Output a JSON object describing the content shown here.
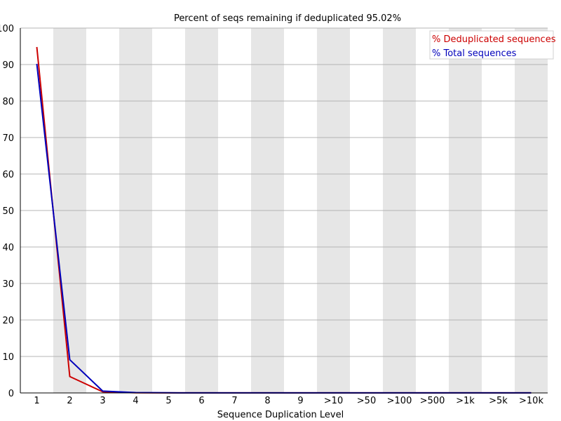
{
  "chart_data": {
    "type": "line",
    "title": "Percent of seqs remaining if deduplicated 95.02%",
    "xlabel": "Sequence Duplication Level",
    "ylabel": "",
    "categories": [
      "1",
      "2",
      "3",
      "4",
      "5",
      "6",
      "7",
      "8",
      "9",
      ">10",
      ">50",
      ">100",
      ">500",
      ">1k",
      ">5k",
      ">10k"
    ],
    "ylim": [
      0,
      100
    ],
    "yticks": [
      0,
      10,
      20,
      30,
      40,
      50,
      60,
      70,
      80,
      90,
      100
    ],
    "grid": true,
    "legend_position": "top-right",
    "series": [
      {
        "name": "% Deduplicated sequences",
        "color": "#cc0000",
        "values": [
          94.8,
          4.5,
          0.3,
          0.05,
          0.02,
          0.01,
          0.01,
          0.01,
          0.01,
          0.01,
          0.01,
          0.01,
          0.01,
          0.01,
          0.01,
          0.01
        ]
      },
      {
        "name": "% Total sequences",
        "color": "#0000bb",
        "values": [
          90.2,
          9.1,
          0.5,
          0.1,
          0.04,
          0.02,
          0.02,
          0.02,
          0.02,
          0.02,
          0.02,
          0.02,
          0.02,
          0.02,
          0.02,
          0.02
        ]
      }
    ],
    "colors": {
      "band": "#e6e6e6",
      "gridline": "#b4b4b4",
      "axis": "#000000"
    }
  }
}
